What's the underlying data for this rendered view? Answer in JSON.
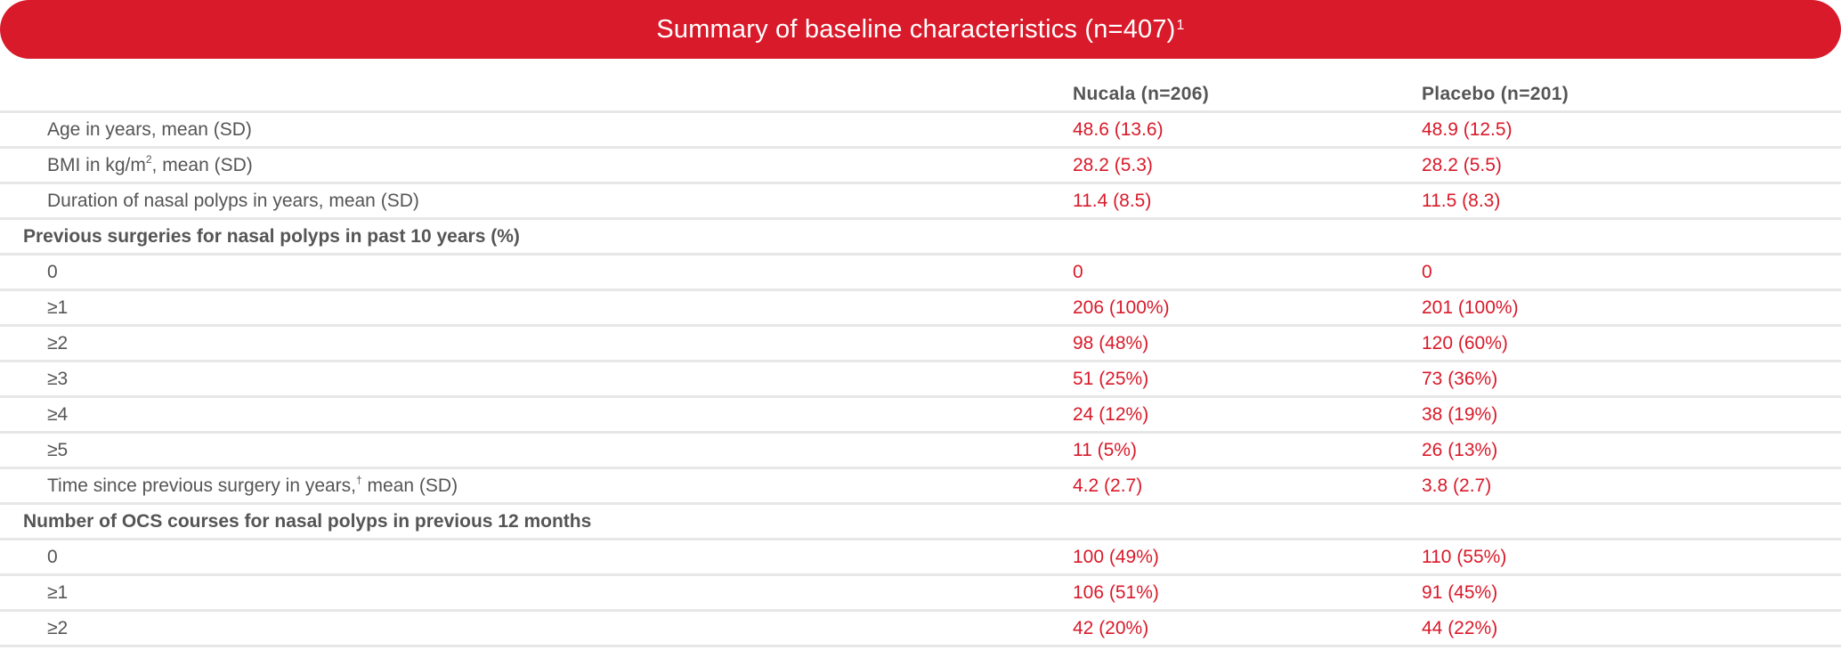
{
  "banner": {
    "title": "Summary of baseline characteristics (n=407)",
    "title_superscript": "1"
  },
  "table": {
    "columns": {
      "label": "",
      "nucala": "Nucala (n=206)",
      "placebo": "Placebo (n=201)"
    },
    "rows": [
      {
        "label": "Age in years, mean (SD)",
        "nucala": "48.6 (13.6)",
        "placebo": "48.9 (12.5)"
      },
      {
        "label_prefix": "BMI in kg/m",
        "label_sup": "2",
        "label_suffix": ", mean (SD)",
        "nucala": "28.2 (5.3)",
        "placebo": "28.2 (5.5)"
      },
      {
        "label": "Duration of nasal polyps in years, mean (SD)",
        "nucala": "11.4 (8.5)",
        "placebo": "11.5 (8.3)"
      },
      {
        "section": "Previous surgeries for nasal polyps in past 10 years (%)"
      },
      {
        "label": "0",
        "nucala": "0",
        "placebo": "0"
      },
      {
        "label": "≥1",
        "nucala": "206 (100%)",
        "placebo": "201 (100%)"
      },
      {
        "label": "≥2",
        "nucala": "98 (48%)",
        "placebo": "120 (60%)"
      },
      {
        "label": "≥3",
        "nucala": "51 (25%)",
        "placebo": "73 (36%)"
      },
      {
        "label": "≥4",
        "nucala": "24 (12%)",
        "placebo": "38 (19%)"
      },
      {
        "label": "≥5",
        "nucala": "11 (5%)",
        "placebo": "26 (13%)"
      },
      {
        "label_prefix": "Time since previous surgery in years,",
        "label_sup": "†",
        "label_suffix": " mean (SD)",
        "nucala": "4.2 (2.7)",
        "placebo": "3.8 (2.7)"
      },
      {
        "section": "Number of OCS courses for nasal polyps in previous 12 months"
      },
      {
        "label": "0",
        "nucala": "100 (49%)",
        "placebo": "110 (55%)"
      },
      {
        "label": "≥1",
        "nucala": "106 (51%)",
        "placebo": "91 (45%)"
      },
      {
        "label": "≥2",
        "nucala": "42 (20%)",
        "placebo": "44 (22%)"
      }
    ]
  },
  "colors": {
    "accent_red": "#d91a2a",
    "text_gray": "#555555",
    "divider": "#e7e7e7"
  }
}
